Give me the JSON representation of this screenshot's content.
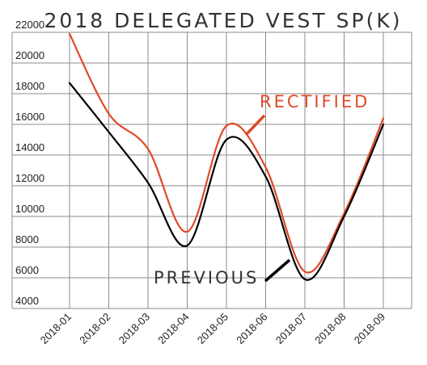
{
  "chart_data": {
    "type": "line",
    "title": "2018 DELEGATED VEST SP(K)",
    "xlabel": "",
    "ylabel": "",
    "categories": [
      "2018-01",
      "2018-02",
      "2018-03",
      "2018-04",
      "2018-05",
      "2018-06",
      "2018-07",
      "2018-08",
      "2018-09"
    ],
    "ylim": [
      4000,
      22000
    ],
    "yticks": [
      4000,
      6000,
      8000,
      10000,
      12000,
      14000,
      16000,
      18000,
      20000,
      22000
    ],
    "grid": true,
    "legend": "inline",
    "series": [
      {
        "name": "RECTIFIED",
        "color": "#e04a28",
        "values": [
          21900,
          16700,
          14400,
          9000,
          15900,
          13200,
          6400,
          10200,
          16400
        ]
      },
      {
        "name": "PREVIOUS",
        "color": "#000000",
        "values": [
          18700,
          15500,
          12200,
          8100,
          15000,
          12600,
          5900,
          10000,
          16000
        ]
      }
    ]
  }
}
